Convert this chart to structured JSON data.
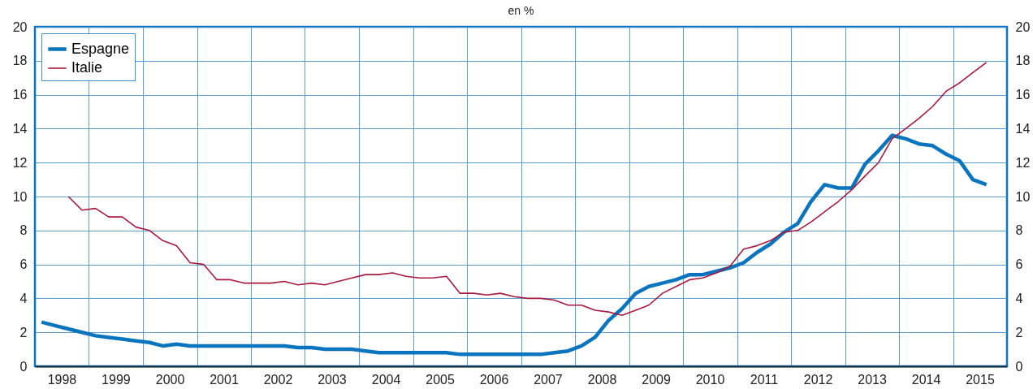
{
  "chart_data": {
    "type": "line",
    "title": "en %",
    "xlim": [
      "1998-01-01",
      "2016-01-01"
    ],
    "xticks": [
      {
        "value": "1998-07-01",
        "label": "1998"
      },
      {
        "value": "1999-01-01",
        "label": null
      },
      {
        "value": "1999-07-01",
        "label": "1999"
      },
      {
        "value": "2000-01-01",
        "label": null
      },
      {
        "value": "2000-07-01",
        "label": "2000"
      },
      {
        "value": "2001-01-01",
        "label": null
      },
      {
        "value": "2001-07-01",
        "label": "2001"
      },
      {
        "value": "2002-01-01",
        "label": null
      },
      {
        "value": "2002-07-01",
        "label": "2002"
      },
      {
        "value": "2003-01-01",
        "label": null
      },
      {
        "value": "2003-07-01",
        "label": "2003"
      },
      {
        "value": "2004-01-01",
        "label": null
      },
      {
        "value": "2004-07-01",
        "label": "2004"
      },
      {
        "value": "2005-01-01",
        "label": null
      },
      {
        "value": "2005-07-01",
        "label": "2005"
      },
      {
        "value": "2006-01-01",
        "label": null
      },
      {
        "value": "2006-07-01",
        "label": "2006"
      },
      {
        "value": "2007-01-01",
        "label": null
      },
      {
        "value": "2007-07-01",
        "label": "2007"
      },
      {
        "value": "2008-01-01",
        "label": null
      },
      {
        "value": "2008-07-01",
        "label": "2008"
      },
      {
        "value": "2009-01-01",
        "label": null
      },
      {
        "value": "2009-07-01",
        "label": "2009"
      },
      {
        "value": "2010-01-01",
        "label": null
      },
      {
        "value": "2010-07-01",
        "label": "2010"
      },
      {
        "value": "2011-01-01",
        "label": null
      },
      {
        "value": "2011-07-01",
        "label": "2011"
      },
      {
        "value": "2012-01-01",
        "label": null
      },
      {
        "value": "2012-07-01",
        "label": "2012"
      },
      {
        "value": "2013-01-01",
        "label": null
      },
      {
        "value": "2013-07-01",
        "label": "2013"
      },
      {
        "value": "2014-01-01",
        "label": null
      },
      {
        "value": "2014-07-01",
        "label": "2014"
      },
      {
        "value": "2015-01-01",
        "label": null
      },
      {
        "value": "2015-07-01",
        "label": "2015"
      }
    ],
    "ylim": [
      0,
      20
    ],
    "yticks": [
      0,
      2,
      4,
      6,
      8,
      10,
      12,
      14,
      16,
      18,
      20
    ],
    "y2lim": [
      0,
      20
    ],
    "y2ticks": [
      0,
      2,
      4,
      6,
      8,
      10,
      12,
      14,
      16,
      18,
      20
    ],
    "grid": true,
    "legend": "top left",
    "series": [
      {
        "name": "Espagne",
        "color": "#0a74bf",
        "x": [
          "1998-02-15",
          "1998-05-15",
          "1998-08-15",
          "1998-11-15",
          "1999-02-15",
          "1999-05-15",
          "1999-08-15",
          "1999-11-15",
          "2000-02-15",
          "2000-05-15",
          "2000-08-15",
          "2000-11-15",
          "2001-02-15",
          "2001-05-15",
          "2001-08-15",
          "2001-11-15",
          "2002-02-15",
          "2002-05-15",
          "2002-08-15",
          "2002-11-15",
          "2003-02-15",
          "2003-05-15",
          "2003-08-15",
          "2003-11-15",
          "2004-02-15",
          "2004-05-15",
          "2004-08-15",
          "2004-11-15",
          "2005-02-15",
          "2005-05-15",
          "2005-08-15",
          "2005-11-15",
          "2006-02-15",
          "2006-05-15",
          "2006-08-15",
          "2006-11-15",
          "2007-02-15",
          "2007-05-15",
          "2007-08-15",
          "2007-11-15",
          "2008-02-15",
          "2008-05-15",
          "2008-08-15",
          "2008-11-15",
          "2009-02-15",
          "2009-05-15",
          "2009-08-15",
          "2009-11-15",
          "2010-02-15",
          "2010-05-15",
          "2010-08-15",
          "2010-11-15",
          "2011-02-15",
          "2011-05-15",
          "2011-08-15",
          "2011-11-15",
          "2012-02-15",
          "2012-05-15",
          "2012-08-15",
          "2012-11-15",
          "2013-02-15",
          "2013-05-15",
          "2013-08-15",
          "2013-11-15",
          "2014-02-15",
          "2014-05-15",
          "2014-08-15",
          "2014-11-15",
          "2015-02-15",
          "2015-05-15",
          "2015-08-15"
        ],
        "values": [
          2.6,
          2.4,
          2.2,
          2.0,
          1.8,
          1.7,
          1.6,
          1.5,
          1.4,
          1.2,
          1.3,
          1.2,
          1.2,
          1.2,
          1.2,
          1.2,
          1.2,
          1.2,
          1.2,
          1.1,
          1.1,
          1.0,
          1.0,
          1.0,
          0.9,
          0.8,
          0.8,
          0.8,
          0.8,
          0.8,
          0.8,
          0.7,
          0.7,
          0.7,
          0.7,
          0.7,
          0.7,
          0.7,
          0.8,
          0.9,
          1.2,
          1.7,
          2.7,
          3.4,
          4.3,
          4.7,
          4.9,
          5.1,
          5.4,
          5.4,
          5.6,
          5.8,
          6.1,
          6.7,
          7.2,
          7.9,
          8.4,
          9.7,
          10.7,
          10.5,
          10.5,
          11.9,
          12.7,
          13.6,
          13.4,
          13.1,
          13.0,
          12.5,
          12.1,
          11.0,
          10.7
        ]
      },
      {
        "name": "Italie",
        "color": "#a8193d",
        "x": [
          "1998-08-15",
          "1998-11-15",
          "1999-02-15",
          "1999-05-15",
          "1999-08-15",
          "1999-11-15",
          "2000-02-15",
          "2000-05-15",
          "2000-08-15",
          "2000-11-15",
          "2001-02-15",
          "2001-05-15",
          "2001-08-15",
          "2001-11-15",
          "2002-02-15",
          "2002-05-15",
          "2002-08-15",
          "2002-11-15",
          "2003-02-15",
          "2003-05-15",
          "2003-08-15",
          "2003-11-15",
          "2004-02-15",
          "2004-05-15",
          "2004-08-15",
          "2004-11-15",
          "2005-02-15",
          "2005-05-15",
          "2005-08-15",
          "2005-11-15",
          "2006-02-15",
          "2006-05-15",
          "2006-08-15",
          "2006-11-15",
          "2007-02-15",
          "2007-05-15",
          "2007-08-15",
          "2007-11-15",
          "2008-02-15",
          "2008-05-15",
          "2008-08-15",
          "2008-11-15",
          "2009-02-15",
          "2009-05-15",
          "2009-08-15",
          "2009-11-15",
          "2010-02-15",
          "2010-05-15",
          "2010-08-15",
          "2010-11-15",
          "2011-02-15",
          "2011-05-15",
          "2011-08-15",
          "2011-11-15",
          "2012-02-15",
          "2012-05-15",
          "2012-08-15",
          "2012-11-15",
          "2013-02-15",
          "2013-05-15",
          "2013-08-15",
          "2013-11-15",
          "2014-02-15",
          "2014-05-15",
          "2014-08-15",
          "2014-11-15",
          "2015-02-15",
          "2015-05-15",
          "2015-08-15"
        ],
        "values": [
          10.0,
          9.2,
          9.3,
          8.8,
          8.8,
          8.2,
          8.0,
          7.4,
          7.1,
          6.1,
          6.0,
          5.1,
          5.1,
          4.9,
          4.9,
          4.9,
          5.0,
          4.8,
          4.9,
          4.8,
          5.0,
          5.2,
          5.4,
          5.4,
          5.5,
          5.3,
          5.2,
          5.2,
          5.3,
          4.3,
          4.3,
          4.2,
          4.3,
          4.1,
          4.0,
          4.0,
          3.9,
          3.6,
          3.6,
          3.3,
          3.2,
          3.0,
          3.3,
          3.6,
          4.3,
          4.7,
          5.1,
          5.2,
          5.5,
          5.9,
          6.9,
          7.1,
          7.4,
          7.9,
          8.0,
          8.5,
          9.1,
          9.7,
          10.4,
          11.2,
          12.0,
          13.4,
          14.0,
          14.6,
          15.3,
          16.2,
          16.7,
          17.3,
          17.9
        ]
      }
    ]
  }
}
